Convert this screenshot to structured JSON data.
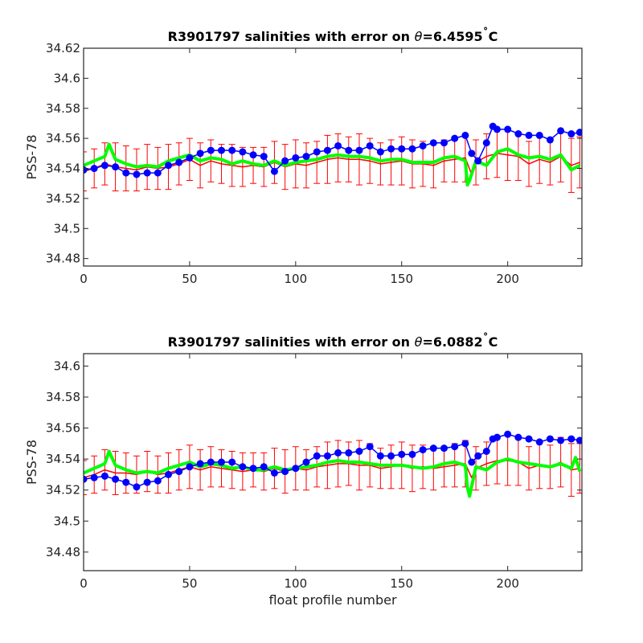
{
  "chart_data": [
    {
      "type": "line",
      "title_prefix": "R3901797 salinities with error on ",
      "title_theta": "θ",
      "title_value": "=6.4595",
      "title_deg": "˚",
      "title_unit": "C",
      "ylabel": "PSS-78",
      "xlabel": "",
      "xlim": [
        0,
        235
      ],
      "ylim": [
        34.475,
        34.62
      ],
      "x_ticks": [
        0,
        50,
        100,
        150,
        200
      ],
      "x_tick_labels": [
        "0",
        "50",
        "100",
        "150",
        "200"
      ],
      "y_ticks": [
        34.48,
        34.5,
        34.52,
        34.54,
        34.56,
        34.58,
        34.6,
        34.62
      ],
      "y_tick_labels": [
        "34.48",
        "34.5",
        "34.52",
        "34.54",
        "34.56",
        "34.58",
        "34.6",
        "34.62"
      ],
      "series": [
        {
          "style": "line",
          "color": "#ff0000",
          "x": [
            0,
            5,
            10,
            15,
            20,
            25,
            30,
            35,
            40,
            45,
            50,
            55,
            60,
            65,
            70,
            75,
            80,
            85,
            90,
            95,
            100,
            105,
            110,
            115,
            120,
            125,
            130,
            135,
            140,
            145,
            150,
            155,
            160,
            165,
            170,
            175,
            180,
            183,
            185,
            190,
            195,
            200,
            205,
            210,
            215,
            220,
            225,
            230,
            234
          ],
          "y": [
            34.538,
            34.54,
            34.543,
            34.541,
            34.54,
            34.539,
            34.541,
            34.54,
            34.541,
            34.543,
            34.546,
            34.542,
            34.545,
            34.543,
            34.542,
            34.541,
            34.542,
            34.541,
            34.544,
            34.541,
            34.543,
            34.542,
            34.544,
            34.546,
            34.547,
            34.546,
            34.546,
            34.545,
            34.543,
            34.544,
            34.545,
            34.543,
            34.543,
            34.542,
            34.545,
            34.546,
            34.547,
            34.536,
            34.544,
            34.548,
            34.55,
            34.549,
            34.548,
            34.543,
            34.546,
            34.544,
            34.548,
            34.542,
            34.544
          ]
        },
        {
          "style": "line",
          "color": "#00ff00",
          "x": [
            0,
            5,
            10,
            12,
            15,
            20,
            25,
            30,
            35,
            40,
            45,
            50,
            55,
            60,
            65,
            70,
            75,
            80,
            85,
            90,
            95,
            100,
            105,
            110,
            115,
            120,
            125,
            130,
            135,
            140,
            145,
            150,
            155,
            160,
            165,
            170,
            175,
            180,
            181,
            182,
            185,
            190,
            195,
            200,
            205,
            210,
            215,
            220,
            225,
            230,
            234
          ],
          "y": [
            34.542,
            34.545,
            34.548,
            34.556,
            34.546,
            34.543,
            34.541,
            34.542,
            34.541,
            34.545,
            34.547,
            34.549,
            34.545,
            34.547,
            34.546,
            34.543,
            34.545,
            34.543,
            34.542,
            34.545,
            34.542,
            34.544,
            34.545,
            34.546,
            34.548,
            34.549,
            34.548,
            34.548,
            34.547,
            34.545,
            34.546,
            34.546,
            34.544,
            34.544,
            34.544,
            34.547,
            34.548,
            34.545,
            34.529,
            34.532,
            34.545,
            34.542,
            34.551,
            34.553,
            34.549,
            34.547,
            34.548,
            34.546,
            34.549,
            34.539,
            34.542
          ]
        },
        {
          "style": "markers",
          "color": "#0000ff",
          "x": [
            0,
            5,
            10,
            15,
            20,
            25,
            30,
            35,
            40,
            45,
            50,
            55,
            60,
            65,
            70,
            75,
            80,
            85,
            90,
            95,
            100,
            105,
            110,
            115,
            120,
            125,
            130,
            135,
            140,
            145,
            150,
            155,
            160,
            165,
            170,
            175,
            180,
            183,
            186,
            190,
            193,
            195,
            200,
            205,
            210,
            215,
            220,
            225,
            230,
            234
          ],
          "y": [
            34.539,
            34.54,
            34.542,
            34.541,
            34.537,
            34.536,
            34.537,
            34.537,
            34.542,
            34.544,
            34.547,
            34.55,
            34.552,
            34.552,
            34.552,
            34.551,
            34.549,
            34.548,
            34.538,
            34.545,
            34.547,
            34.548,
            34.551,
            34.552,
            34.555,
            34.552,
            34.552,
            34.555,
            34.551,
            34.553,
            34.553,
            34.553,
            34.555,
            34.557,
            34.557,
            34.56,
            34.562,
            34.55,
            34.545,
            34.557,
            34.568,
            34.566,
            34.566,
            34.563,
            34.562,
            34.562,
            34.559,
            34.565,
            34.563,
            34.564
          ]
        }
      ],
      "error_bars": {
        "color": "#ff0000",
        "x": [
          0,
          5,
          10,
          15,
          20,
          25,
          30,
          35,
          40,
          45,
          50,
          55,
          60,
          65,
          70,
          75,
          80,
          85,
          90,
          95,
          100,
          105,
          110,
          115,
          120,
          125,
          130,
          135,
          140,
          145,
          150,
          155,
          160,
          165,
          170,
          175,
          180,
          185,
          190,
          195,
          200,
          205,
          210,
          215,
          220,
          225,
          230,
          234
        ],
        "y": [
          34.538,
          34.54,
          34.543,
          34.541,
          34.54,
          34.539,
          34.541,
          34.54,
          34.541,
          34.543,
          34.546,
          34.542,
          34.545,
          34.543,
          34.542,
          34.541,
          34.542,
          34.541,
          34.544,
          34.541,
          34.543,
          34.542,
          34.544,
          34.546,
          34.547,
          34.546,
          34.546,
          34.545,
          34.543,
          34.544,
          34.545,
          34.543,
          34.543,
          34.542,
          34.545,
          34.546,
          34.547,
          34.544,
          34.548,
          34.55,
          34.549,
          34.548,
          34.543,
          34.546,
          34.544,
          34.548,
          34.542,
          34.544
        ],
        "err": [
          0.013,
          0.013,
          0.014,
          0.016,
          0.015,
          0.014,
          0.015,
          0.014,
          0.015,
          0.014,
          0.014,
          0.015,
          0.014,
          0.013,
          0.014,
          0.013,
          0.012,
          0.013,
          0.014,
          0.015,
          0.016,
          0.015,
          0.014,
          0.016,
          0.016,
          0.015,
          0.017,
          0.015,
          0.014,
          0.015,
          0.016,
          0.016,
          0.015,
          0.015,
          0.014,
          0.015,
          0.016,
          0.015,
          0.015,
          0.016,
          0.017,
          0.016,
          0.015,
          0.016,
          0.015,
          0.017,
          0.018,
          0.017
        ]
      }
    },
    {
      "type": "line",
      "title_prefix": "R3901797 salinities with error on ",
      "title_theta": "θ",
      "title_value": "=6.0882",
      "title_deg": "˚",
      "title_unit": "C",
      "ylabel": "PSS-78",
      "xlabel": "float profile number",
      "xlim": [
        0,
        235
      ],
      "ylim": [
        34.468,
        34.608
      ],
      "x_ticks": [
        0,
        50,
        100,
        150,
        200
      ],
      "x_tick_labels": [
        "0",
        "50",
        "100",
        "150",
        "200"
      ],
      "y_ticks": [
        34.48,
        34.5,
        34.52,
        34.54,
        34.56,
        34.58,
        34.6
      ],
      "y_tick_labels": [
        "34.48",
        "34.5",
        "34.52",
        "34.54",
        "34.56",
        "34.58",
        "34.6"
      ],
      "series": [
        {
          "style": "line",
          "color": "#ff0000",
          "x": [
            0,
            5,
            10,
            15,
            20,
            25,
            30,
            35,
            40,
            45,
            50,
            55,
            60,
            65,
            70,
            75,
            80,
            85,
            90,
            95,
            100,
            105,
            110,
            115,
            120,
            125,
            130,
            135,
            140,
            145,
            150,
            155,
            160,
            165,
            170,
            175,
            180,
            183,
            185,
            190,
            195,
            200,
            205,
            210,
            215,
            220,
            225,
            230,
            234
          ],
          "y": [
            34.528,
            34.53,
            34.533,
            34.531,
            34.531,
            34.53,
            34.532,
            34.53,
            34.531,
            34.533,
            34.535,
            34.533,
            34.535,
            34.534,
            34.533,
            34.532,
            34.533,
            34.532,
            34.534,
            34.532,
            34.534,
            34.533,
            34.535,
            34.536,
            34.537,
            34.537,
            34.536,
            34.536,
            34.534,
            34.535,
            34.536,
            34.534,
            34.535,
            34.534,
            34.535,
            34.536,
            34.537,
            34.528,
            34.534,
            34.537,
            34.539,
            34.539,
            34.538,
            34.534,
            34.536,
            34.535,
            34.538,
            34.533,
            34.534
          ]
        },
        {
          "style": "line",
          "color": "#00ff00",
          "x": [
            0,
            5,
            10,
            12,
            15,
            20,
            25,
            30,
            35,
            40,
            45,
            50,
            55,
            60,
            65,
            70,
            75,
            80,
            85,
            90,
            95,
            100,
            105,
            110,
            115,
            120,
            125,
            130,
            135,
            140,
            145,
            150,
            155,
            160,
            165,
            170,
            175,
            180,
            181,
            182,
            185,
            190,
            195,
            200,
            205,
            210,
            215,
            220,
            225,
            230,
            232,
            234
          ],
          "y": [
            34.531,
            34.534,
            34.537,
            34.545,
            34.536,
            34.533,
            34.531,
            34.532,
            34.531,
            34.534,
            34.536,
            34.538,
            34.535,
            34.537,
            34.536,
            34.534,
            34.535,
            34.533,
            34.533,
            34.535,
            34.533,
            34.534,
            34.535,
            34.536,
            34.538,
            34.539,
            34.538,
            34.538,
            34.537,
            34.536,
            34.536,
            34.536,
            34.535,
            34.534,
            34.535,
            34.537,
            34.538,
            34.536,
            34.522,
            34.516,
            34.535,
            34.533,
            34.538,
            34.54,
            34.538,
            34.537,
            34.536,
            34.535,
            34.537,
            34.534,
            34.541,
            34.532
          ]
        },
        {
          "style": "markers",
          "color": "#0000ff",
          "x": [
            0,
            5,
            10,
            15,
            20,
            25,
            30,
            35,
            40,
            45,
            50,
            55,
            60,
            65,
            70,
            75,
            80,
            85,
            90,
            95,
            100,
            105,
            110,
            115,
            120,
            125,
            130,
            135,
            140,
            145,
            150,
            155,
            160,
            165,
            170,
            175,
            180,
            183,
            186,
            190,
            193,
            195,
            200,
            205,
            210,
            215,
            220,
            225,
            230,
            234
          ],
          "y": [
            34.527,
            34.528,
            34.529,
            34.527,
            34.525,
            34.522,
            34.525,
            34.526,
            34.53,
            34.532,
            34.535,
            34.537,
            34.538,
            34.538,
            34.538,
            34.535,
            34.534,
            34.535,
            34.531,
            34.532,
            34.534,
            34.538,
            34.542,
            34.542,
            34.544,
            34.544,
            34.545,
            34.548,
            34.542,
            34.542,
            34.543,
            34.543,
            34.546,
            34.547,
            34.547,
            34.548,
            34.55,
            34.538,
            34.542,
            34.545,
            34.553,
            34.554,
            34.556,
            34.554,
            34.553,
            34.551,
            34.553,
            34.552,
            34.553,
            34.552
          ]
        }
      ],
      "error_bars": {
        "color": "#ff0000",
        "x": [
          0,
          5,
          10,
          15,
          20,
          25,
          30,
          35,
          40,
          45,
          50,
          55,
          60,
          65,
          70,
          75,
          80,
          85,
          90,
          95,
          100,
          105,
          110,
          115,
          120,
          125,
          130,
          135,
          140,
          145,
          150,
          155,
          160,
          165,
          170,
          175,
          180,
          185,
          190,
          195,
          200,
          205,
          210,
          215,
          220,
          225,
          230,
          234
        ],
        "y": [
          34.528,
          34.53,
          34.533,
          34.531,
          34.531,
          34.53,
          34.532,
          34.53,
          34.531,
          34.533,
          34.535,
          34.533,
          34.535,
          34.534,
          34.533,
          34.532,
          34.533,
          34.532,
          34.534,
          34.532,
          34.534,
          34.533,
          34.535,
          34.536,
          34.537,
          34.537,
          34.536,
          34.536,
          34.534,
          34.535,
          34.536,
          34.534,
          34.535,
          34.534,
          34.535,
          34.536,
          34.537,
          34.534,
          34.537,
          34.539,
          34.539,
          34.538,
          34.534,
          34.536,
          34.535,
          34.538,
          34.533,
          34.534
        ],
        "err": [
          0.011,
          0.012,
          0.013,
          0.014,
          0.013,
          0.012,
          0.013,
          0.012,
          0.013,
          0.013,
          0.014,
          0.013,
          0.013,
          0.012,
          0.012,
          0.012,
          0.011,
          0.012,
          0.013,
          0.014,
          0.014,
          0.013,
          0.013,
          0.015,
          0.015,
          0.014,
          0.016,
          0.014,
          0.013,
          0.014,
          0.015,
          0.015,
          0.014,
          0.014,
          0.013,
          0.014,
          0.015,
          0.014,
          0.014,
          0.015,
          0.016,
          0.015,
          0.014,
          0.015,
          0.014,
          0.016,
          0.017,
          0.016
        ]
      }
    }
  ]
}
